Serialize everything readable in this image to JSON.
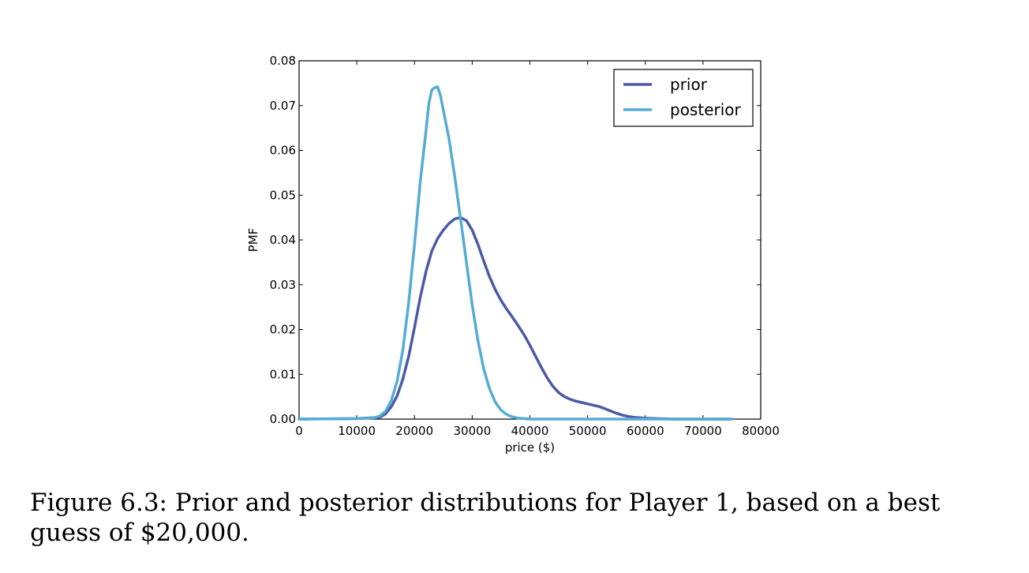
{
  "caption": "Figure 6.3: Prior and posterior distributions for Player 1, based on a best guess of $20,000.",
  "chart_data": {
    "type": "line",
    "xlabel": "price ($)",
    "ylabel": "PMF",
    "xlim": [
      0,
      80000
    ],
    "ylim": [
      0,
      0.08
    ],
    "xticks": [
      "0",
      "10000",
      "20000",
      "30000",
      "40000",
      "50000",
      "60000",
      "70000",
      "80000"
    ],
    "yticks": [
      "0.00",
      "0.01",
      "0.02",
      "0.03",
      "0.04",
      "0.05",
      "0.06",
      "0.07",
      "0.08"
    ],
    "legend_position": "top-right",
    "grid": false,
    "series": [
      {
        "name": "prior",
        "color": "#4c5aa6",
        "x": [
          0,
          10000,
          14000,
          15000,
          16000,
          17000,
          18000,
          19000,
          20000,
          21000,
          22000,
          23000,
          24000,
          25000,
          26000,
          27000,
          28000,
          29000,
          30000,
          31000,
          32000,
          33000,
          34000,
          35000,
          36000,
          37000,
          38000,
          39000,
          40000,
          41000,
          42000,
          43000,
          44000,
          45000,
          46000,
          47000,
          48000,
          49000,
          50000,
          51000,
          52000,
          53000,
          54000,
          55000,
          56000,
          57000,
          58000,
          60000,
          62000,
          65000,
          70000,
          75000
        ],
        "y": [
          0,
          0.0001,
          0.0004,
          0.0012,
          0.0028,
          0.0052,
          0.009,
          0.014,
          0.0205,
          0.0272,
          0.033,
          0.0375,
          0.0403,
          0.0422,
          0.0437,
          0.0447,
          0.045,
          0.0443,
          0.0422,
          0.039,
          0.0353,
          0.0318,
          0.0289,
          0.0265,
          0.0245,
          0.0227,
          0.0208,
          0.0188,
          0.0165,
          0.014,
          0.0115,
          0.0092,
          0.0073,
          0.0059,
          0.005,
          0.0044,
          0.004,
          0.0037,
          0.0034,
          0.0031,
          0.0028,
          0.0023,
          0.0018,
          0.0013,
          0.0009,
          0.0006,
          0.0004,
          0.0002,
          0.0001,
          0,
          0,
          0
        ]
      },
      {
        "name": "posterior",
        "color": "#55acd4",
        "x": [
          0,
          10000,
          13000,
          14000,
          15000,
          16000,
          17000,
          18000,
          19000,
          20000,
          21000,
          22000,
          22500,
          23000,
          23500,
          24000,
          24500,
          25000,
          26000,
          27000,
          28000,
          29000,
          30000,
          31000,
          32000,
          33000,
          34000,
          35000,
          36000,
          37000,
          38000,
          39000,
          40000,
          42000,
          45000,
          50000,
          60000,
          70000,
          75000
        ],
        "y": [
          0,
          0.0001,
          0.0003,
          0.0007,
          0.0018,
          0.0042,
          0.0085,
          0.0155,
          0.026,
          0.039,
          0.053,
          0.0645,
          0.0705,
          0.0735,
          0.074,
          0.0742,
          0.0722,
          0.069,
          0.0625,
          0.054,
          0.0445,
          0.035,
          0.0255,
          0.0175,
          0.0112,
          0.0068,
          0.0038,
          0.002,
          0.001,
          0.0005,
          0.0002,
          0.0001,
          0,
          0,
          0,
          0,
          0,
          0,
          0
        ]
      }
    ]
  }
}
